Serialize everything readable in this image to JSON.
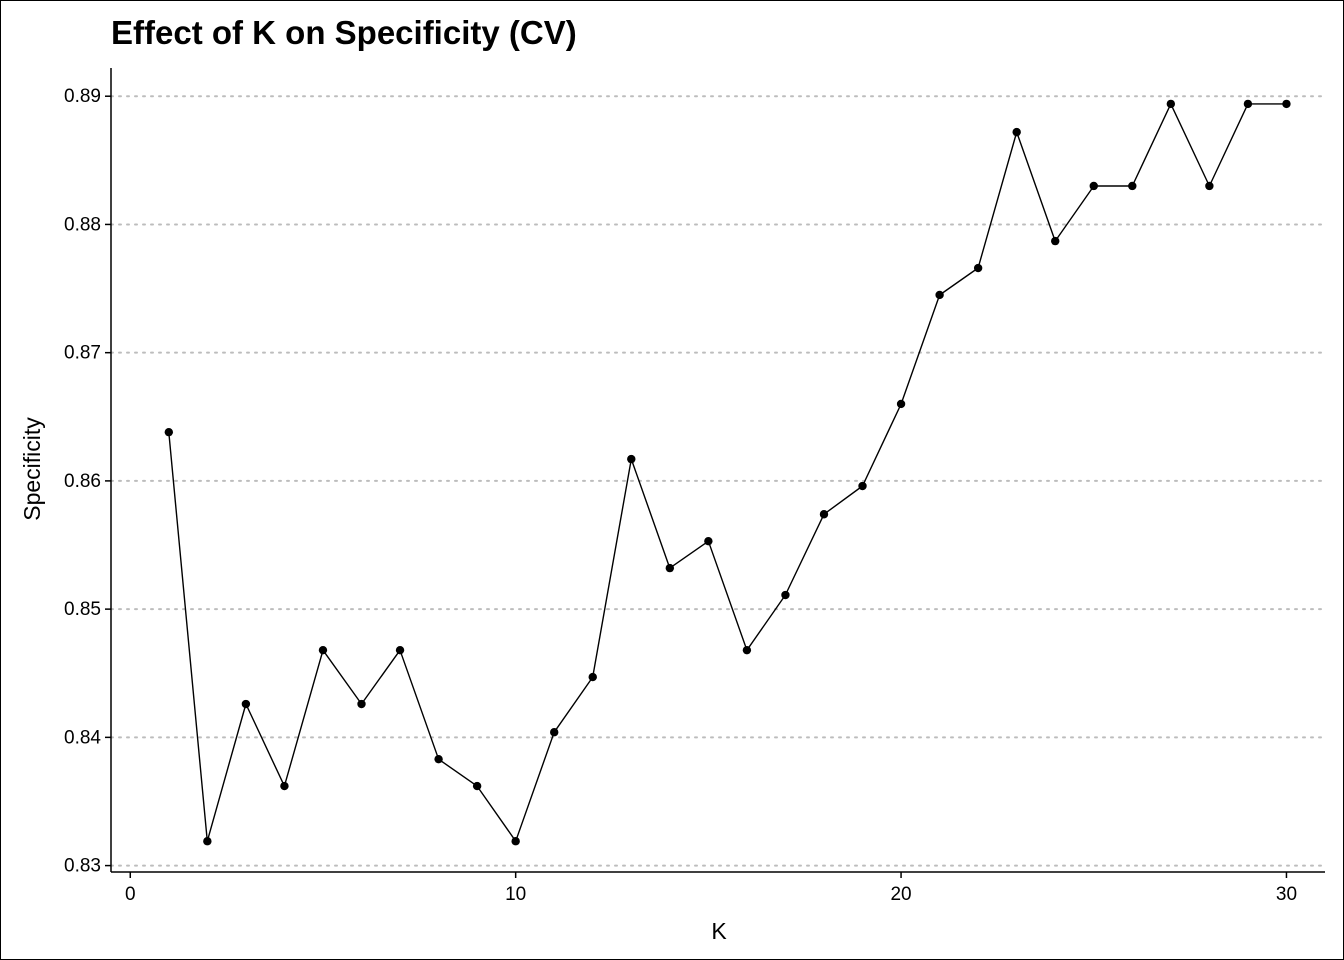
{
  "chart_data": {
    "type": "line",
    "title": "Effect of K on Specificity (CV)",
    "xlabel": "K",
    "ylabel": "Specificity",
    "xlim": [
      -0.5,
      31
    ],
    "ylim": [
      0.8295,
      0.8922
    ],
    "x_ticks": [
      0,
      10,
      20,
      30
    ],
    "x_tick_labels": [
      "0",
      "10",
      "20",
      "30"
    ],
    "y_ticks": [
      0.83,
      0.84,
      0.85,
      0.86,
      0.87,
      0.88,
      0.89
    ],
    "y_tick_labels": [
      "0.83",
      "0.84",
      "0.85",
      "0.86",
      "0.87",
      "0.88",
      "0.89"
    ],
    "grid": "horizontal dotted major lines",
    "colors": {
      "line": "#000000",
      "points": "#000000",
      "grid": "#bdbdbd",
      "axis": "#000000"
    },
    "x": [
      1,
      2,
      3,
      4,
      5,
      6,
      7,
      8,
      9,
      10,
      11,
      12,
      13,
      14,
      15,
      16,
      17,
      18,
      19,
      20,
      21,
      22,
      23,
      24,
      25,
      26,
      27,
      28,
      29,
      30
    ],
    "series": [
      {
        "values": [
          0.8638,
          0.8319,
          0.8426,
          0.8362,
          0.8468,
          0.8426,
          0.8468,
          0.8383,
          0.8362,
          0.8319,
          0.8404,
          0.8447,
          0.8617,
          0.8532,
          0.8553,
          0.8468,
          0.8511,
          0.8574,
          0.8596,
          0.866,
          0.8745,
          0.8766,
          0.8872,
          0.8787,
          0.883,
          0.883,
          0.8894,
          0.883,
          0.8894,
          0.8894
        ]
      }
    ]
  }
}
